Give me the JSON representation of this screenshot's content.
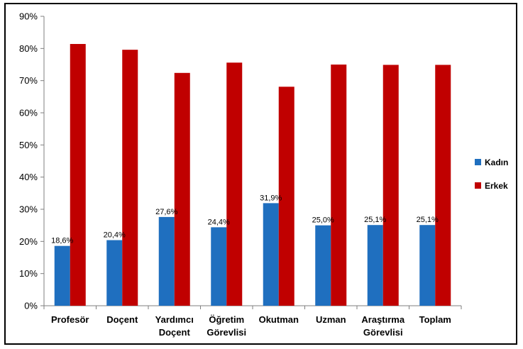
{
  "chart_data": {
    "type": "bar",
    "categories": [
      [
        "Profesör"
      ],
      [
        "Doçent"
      ],
      [
        "Yardımcı",
        "Doçent"
      ],
      [
        "Öğretim",
        "Görevlisi"
      ],
      [
        "Okutman"
      ],
      [
        "Uzman"
      ],
      [
        "Araştırma",
        "Görevlisi"
      ],
      [
        "Toplam"
      ]
    ],
    "series": [
      {
        "name": "Kadın",
        "color": "#1f6fbf",
        "values": [
          18.6,
          20.4,
          27.6,
          24.4,
          31.9,
          25.0,
          25.1,
          25.1
        ],
        "data_labels": [
          "18,6%",
          "20,4%",
          "27,6%",
          "24,4%",
          "31,9%",
          "25,0%",
          "25,1%",
          "25,1%"
        ]
      },
      {
        "name": "Erkek",
        "color": "#c00000",
        "values": [
          81.4,
          79.6,
          72.4,
          75.6,
          68.1,
          75.0,
          74.9,
          74.9
        ]
      }
    ],
    "y_ticks": [
      "0%",
      "10%",
      "20%",
      "30%",
      "40%",
      "50%",
      "60%",
      "70%",
      "80%",
      "90%"
    ],
    "ylim": [
      0,
      90
    ],
    "grid": false,
    "legend": "right"
  }
}
